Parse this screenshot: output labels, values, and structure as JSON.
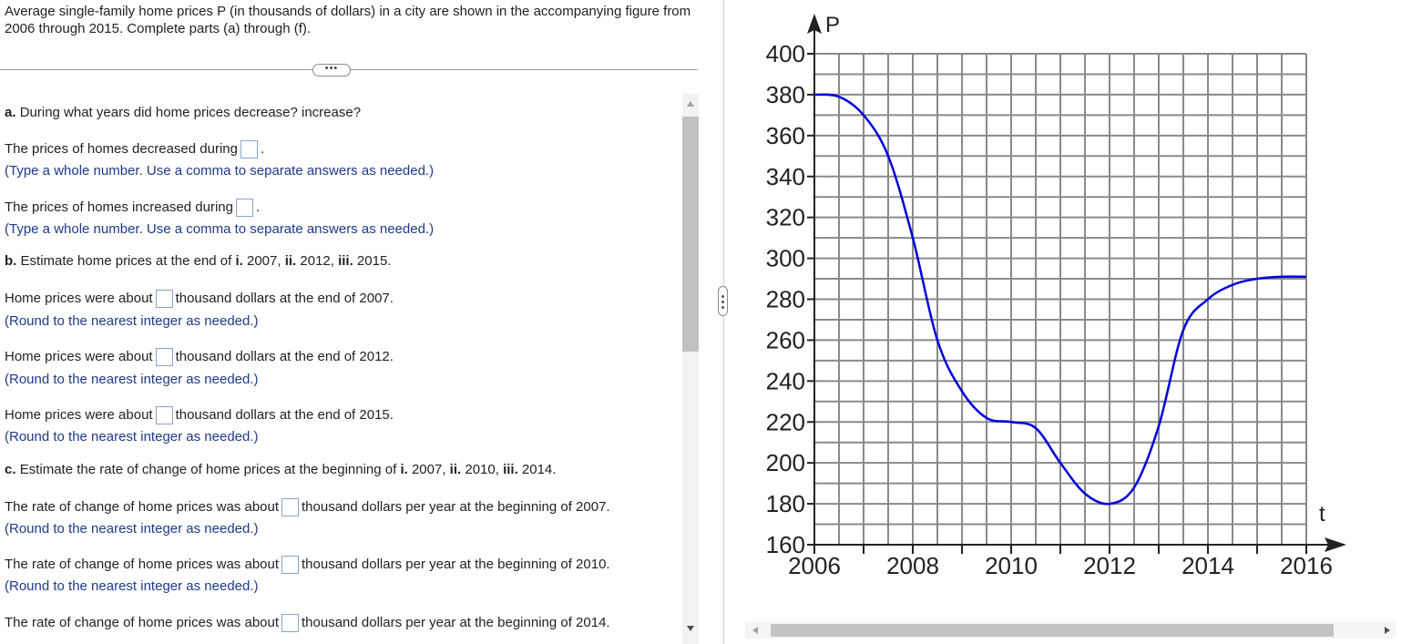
{
  "intro_text": "Average single-family home prices P (in thousands of dollars) in a city are shown in the accompanying figure from 2006 through 2015. Complete parts (a) through (f).",
  "dots_label": "•••",
  "questions": {
    "a": {
      "label": "a.",
      "prompt": "During what years did home prices decrease? increase?"
    },
    "a1": {
      "text": "The prices of homes decreased during",
      "hint": "(Type a whole number. Use a comma to separate answers as needed.)"
    },
    "a2": {
      "text": "The prices of homes increased during",
      "hint": "(Type a whole number. Use a comma to separate answers as needed.)"
    },
    "b": {
      "label": "b.",
      "prompt_pre": "Estimate home prices at the end of ",
      "i": "i.",
      "y1": " 2007, ",
      "ii": "ii.",
      "y2": " 2012, ",
      "iii": "iii.",
      "y3": " 2015."
    },
    "b1": {
      "pre": "Home prices were about",
      "post": "thousand dollars at the end of 2007.",
      "hint": "(Round to the nearest integer as needed.)"
    },
    "b2": {
      "pre": "Home prices were about",
      "post": "thousand dollars at the end of 2012.",
      "hint": "(Round to the nearest integer as needed.)"
    },
    "b3": {
      "pre": "Home prices were about",
      "post": "thousand dollars at the end of 2015.",
      "hint": "(Round to the nearest integer as needed.)"
    },
    "c": {
      "label": "c.",
      "prompt_pre": "Estimate the rate of change of home prices at the beginning of ",
      "i": "i.",
      "y1": " 2007, ",
      "ii": "ii.",
      "y2": " 2010, ",
      "iii": "iii.",
      "y3": " 2014."
    },
    "c1": {
      "pre": "The rate of change of home prices was about",
      "post": "thousand dollars per year at the beginning of 2007.",
      "hint": "(Round to the nearest integer as needed.)"
    },
    "c2": {
      "pre": "The rate of change of home prices was about",
      "post": "thousand dollars per year at the beginning of 2010.",
      "hint": "(Round to the nearest integer as needed.)"
    },
    "c3": {
      "pre": "The rate of change of home prices was about",
      "post": "thousand dollars per year at the beginning of 2014."
    }
  },
  "chart_data": {
    "type": "line",
    "ylabel": "P",
    "xlabel": "t",
    "xlim": [
      2006,
      2016
    ],
    "ylim": [
      160,
      400
    ],
    "x_ticks": [
      2006,
      2008,
      2010,
      2012,
      2014,
      2016
    ],
    "y_ticks": [
      160,
      180,
      200,
      220,
      240,
      260,
      280,
      300,
      320,
      340,
      360,
      380,
      400
    ],
    "grid": true,
    "line_color": "#0000dd",
    "grid_color": "#8a8a8a",
    "series": [
      {
        "x": [
          2006,
          2006.5,
          2007,
          2007.5,
          2008,
          2008.5,
          2009,
          2009.5,
          2010,
          2010.5,
          2011,
          2011.5,
          2012,
          2012.5,
          2013,
          2013.5,
          2014,
          2014.5,
          2015,
          2015.5,
          2016
        ],
        "y": [
          380,
          379,
          370,
          350,
          310,
          260,
          235,
          222,
          220,
          217,
          200,
          185,
          180,
          188,
          218,
          265,
          280,
          287,
          290,
          291,
          291
        ]
      }
    ]
  }
}
